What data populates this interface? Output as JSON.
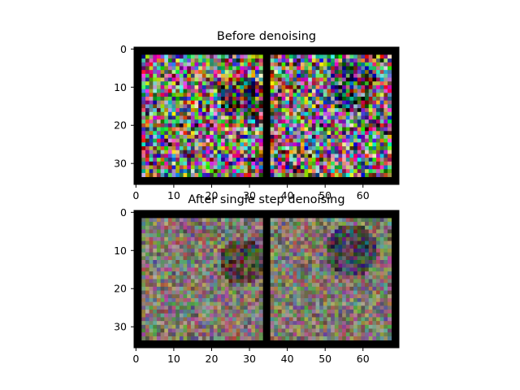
{
  "chart_data": [
    {
      "type": "heatmap",
      "title": "Before denoising",
      "xlabel": "",
      "ylabel": "",
      "xlim": [
        -0.5,
        69.5
      ],
      "ylim": [
        35.5,
        -0.5
      ],
      "x_ticks": [
        "0",
        "10",
        "20",
        "30",
        "40",
        "50",
        "60"
      ],
      "y_ticks": [
        "0",
        "10",
        "20",
        "30"
      ],
      "grid": false,
      "content": "two side-by-side 32x32 RGB noise images separated by 2px black border"
    },
    {
      "type": "heatmap",
      "title": "After single step denoising",
      "xlabel": "",
      "ylabel": "",
      "xlim": [
        -0.5,
        69.5
      ],
      "ylim": [
        35.5,
        -0.5
      ],
      "x_ticks": [
        "0",
        "10",
        "20",
        "30",
        "40",
        "50",
        "60"
      ],
      "y_ticks": [
        "0",
        "10",
        "20",
        "30"
      ],
      "grid": false,
      "content": "two side-by-side 32x32 RGB partially denoised images separated by 2px black border"
    }
  ]
}
